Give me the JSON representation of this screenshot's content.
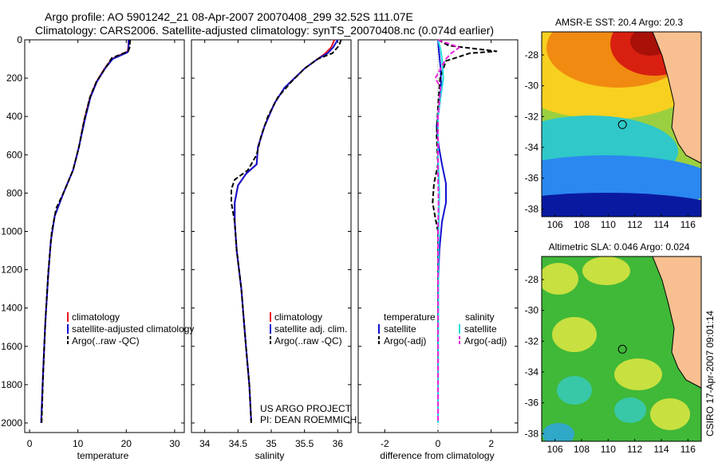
{
  "title": {
    "line1": "Argo profile: AO 5901242_21 08-Apr-2007 20070408_299 32.52S 111.07E",
    "line2": "Climatology: CARS2006. Satellite-adjusted climatology: synTS_20070408.nc (0.074d earlier)"
  },
  "side_label": "CSIRO 17-Apr-2007 09:01:14",
  "project_label": {
    "line1": "US ARGO PROJECT",
    "line2": "PI: DEAN ROEMMICH"
  },
  "colors": {
    "climatology": "#e8141e",
    "satellite": "#1010d0",
    "argo": "#000000",
    "cyan": "#22dde0",
    "magenta": "#ee22dd",
    "land": "#f8c090"
  },
  "chart_data": [
    {
      "id": "temperature",
      "type": "line",
      "xlabel": "temperature",
      "xlim": [
        -1,
        32
      ],
      "ylim": [
        0,
        2050
      ],
      "x_ticks": [
        0,
        10,
        20,
        30
      ],
      "y_ticks": [
        0,
        200,
        400,
        600,
        800,
        1000,
        1200,
        1400,
        1600,
        1800,
        2000
      ],
      "y_reversed": true,
      "legend": [
        "climatology",
        "satellite-adjusted climatology",
        "Argo(..raw -QC)"
      ],
      "series": [
        {
          "name": "climatology",
          "color": "#e8141e",
          "dash": false,
          "points": [
            [
              20.5,
              0
            ],
            [
              20.4,
              40
            ],
            [
              20.3,
              60
            ],
            [
              17,
              100
            ],
            [
              15.5,
              150
            ],
            [
              13.8,
              220
            ],
            [
              12.5,
              300
            ],
            [
              11.3,
              420
            ],
            [
              10.2,
              560
            ],
            [
              9,
              680
            ],
            [
              7,
              800
            ],
            [
              5.2,
              920
            ],
            [
              4.4,
              1050
            ],
            [
              3.8,
              1250
            ],
            [
              3.2,
              1500
            ],
            [
              2.7,
              1800
            ],
            [
              2.4,
              2000
            ]
          ]
        },
        {
          "name": "satellite-adjusted climatology",
          "color": "#1010d0",
          "dash": false,
          "points": [
            [
              20.5,
              0
            ],
            [
              20.5,
              40
            ],
            [
              20.3,
              65
            ],
            [
              17.2,
              100
            ],
            [
              15.6,
              150
            ],
            [
              13.9,
              220
            ],
            [
              12.6,
              300
            ],
            [
              11.4,
              420
            ],
            [
              10.2,
              560
            ],
            [
              9,
              680
            ],
            [
              7,
              800
            ],
            [
              5.2,
              920
            ],
            [
              4.4,
              1050
            ],
            [
              3.8,
              1250
            ],
            [
              3.2,
              1500
            ],
            [
              2.7,
              1800
            ],
            [
              2.4,
              2000
            ]
          ]
        },
        {
          "name": "Argo(..raw -QC)",
          "color": "#000000",
          "dash": true,
          "points": [
            [
              20.8,
              0
            ],
            [
              20.7,
              40
            ],
            [
              20.4,
              60
            ],
            [
              17,
              95
            ],
            [
              15.6,
              150
            ],
            [
              13.8,
              220
            ],
            [
              12.5,
              300
            ],
            [
              11.3,
              420
            ],
            [
              10.2,
              560
            ],
            [
              9,
              680
            ],
            [
              7,
              800
            ],
            [
              5.5,
              880
            ],
            [
              4.6,
              1000
            ],
            [
              3.9,
              1200
            ],
            [
              3.3,
              1450
            ],
            [
              2.8,
              1750
            ],
            [
              2.5,
              2000
            ]
          ]
        }
      ]
    },
    {
      "id": "salinity",
      "type": "line",
      "xlabel": "salinity",
      "xlim": [
        33.8,
        36.2
      ],
      "ylim": [
        0,
        2050
      ],
      "x_ticks": [
        34,
        34.5,
        35,
        35.5,
        36
      ],
      "y_ticks": [],
      "y_reversed": true,
      "legend": [
        "climatology",
        "satellite adj. clim.",
        "Argo(..raw -QC)"
      ],
      "series": [
        {
          "name": "climatology",
          "color": "#e8141e",
          "dash": false,
          "points": [
            [
              35.95,
              0
            ],
            [
              35.9,
              40
            ],
            [
              35.8,
              75
            ],
            [
              35.7,
              100
            ],
            [
              35.5,
              150
            ],
            [
              35.35,
              200
            ],
            [
              35.2,
              250
            ],
            [
              35.05,
              330
            ],
            [
              34.9,
              450
            ],
            [
              34.8,
              560
            ],
            [
              34.78,
              650
            ],
            [
              34.62,
              700
            ],
            [
              34.5,
              760
            ],
            [
              34.45,
              850
            ],
            [
              34.45,
              950
            ],
            [
              34.48,
              1100
            ],
            [
              34.55,
              1300
            ],
            [
              34.62,
              1600
            ],
            [
              34.67,
              1800
            ],
            [
              34.7,
              2000
            ]
          ]
        },
        {
          "name": "satellite adj. clim.",
          "color": "#1010d0",
          "dash": false,
          "points": [
            [
              36.0,
              0
            ],
            [
              35.93,
              40
            ],
            [
              35.85,
              70
            ],
            [
              35.7,
              100
            ],
            [
              35.5,
              150
            ],
            [
              35.35,
              200
            ],
            [
              35.2,
              250
            ],
            [
              35.05,
              330
            ],
            [
              34.9,
              450
            ],
            [
              34.8,
              560
            ],
            [
              34.78,
              650
            ],
            [
              34.62,
              700
            ],
            [
              34.5,
              760
            ],
            [
              34.45,
              850
            ],
            [
              34.45,
              950
            ],
            [
              34.48,
              1100
            ],
            [
              34.55,
              1300
            ],
            [
              34.62,
              1600
            ],
            [
              34.67,
              1800
            ],
            [
              34.7,
              2000
            ]
          ]
        },
        {
          "name": "Argo(..raw -QC)",
          "color": "#000000",
          "dash": true,
          "points": [
            [
              36.05,
              0
            ],
            [
              36.02,
              30
            ],
            [
              35.92,
              70
            ],
            [
              35.7,
              100
            ],
            [
              35.5,
              150
            ],
            [
              35.3,
              220
            ],
            [
              35.1,
              300
            ],
            [
              34.95,
              400
            ],
            [
              34.85,
              500
            ],
            [
              34.78,
              600
            ],
            [
              34.65,
              680
            ],
            [
              34.45,
              730
            ],
            [
              34.4,
              780
            ],
            [
              34.4,
              850
            ],
            [
              34.45,
              950
            ],
            [
              34.48,
              1100
            ],
            [
              34.55,
              1300
            ],
            [
              34.62,
              1600
            ],
            [
              34.67,
              1800
            ],
            [
              34.7,
              2000
            ]
          ]
        }
      ]
    },
    {
      "id": "difference",
      "type": "line",
      "xlabel": "difference from climatology",
      "xlim": [
        -3,
        3
      ],
      "ylim": [
        0,
        2050
      ],
      "x_ticks": [
        -2,
        0,
        2
      ],
      "y_ticks": [],
      "y_reversed": true,
      "legend_titles": [
        "temperature",
        "salinity"
      ],
      "legend": [
        "satellite",
        "Argo(-adj)",
        "satellite",
        "Argo(-adj)"
      ],
      "series": [
        {
          "name": "temperature satellite",
          "color": "#1010d0",
          "dash": false,
          "points": [
            [
              0,
              0
            ],
            [
              0.02,
              40
            ],
            [
              0.05,
              80
            ],
            [
              0.1,
              150
            ],
            [
              0.12,
              250
            ],
            [
              0.05,
              350
            ],
            [
              -0.05,
              450
            ],
            [
              0.02,
              550
            ],
            [
              0.15,
              650
            ],
            [
              0.3,
              750
            ],
            [
              0.3,
              850
            ],
            [
              0.15,
              950
            ],
            [
              0.05,
              1100
            ],
            [
              0,
              1300
            ],
            [
              0,
              1600
            ],
            [
              0,
              2000
            ]
          ]
        },
        {
          "name": "temperature Argo(-adj)",
          "color": "#000000",
          "dash": true,
          "points": [
            [
              0,
              0
            ],
            [
              0.4,
              30
            ],
            [
              2.2,
              60
            ],
            [
              1.2,
              70
            ],
            [
              0.3,
              110
            ],
            [
              0.08,
              200
            ],
            [
              0,
              350
            ],
            [
              -0.05,
              500
            ],
            [
              0,
              650
            ],
            [
              -0.15,
              750
            ],
            [
              -0.2,
              850
            ],
            [
              -0.1,
              930
            ],
            [
              0,
              1000
            ],
            [
              0,
              1300
            ],
            [
              0,
              2000
            ]
          ]
        },
        {
          "name": "salinity satellite",
          "color": "#22dde0",
          "dash": false,
          "points": [
            [
              0,
              0
            ],
            [
              0.1,
              50
            ],
            [
              0.15,
              100
            ],
            [
              0.2,
              200
            ],
            [
              0.1,
              300
            ],
            [
              0,
              400
            ],
            [
              0,
              600
            ],
            [
              0.05,
              800
            ],
            [
              0.02,
              1000
            ],
            [
              0,
              2000
            ]
          ]
        },
        {
          "name": "salinity Argo(-adj)",
          "color": "#ee22dd",
          "dash": true,
          "points": [
            [
              0,
              0
            ],
            [
              0.8,
              40
            ],
            [
              0.5,
              70
            ],
            [
              0.3,
              100
            ],
            [
              -0.1,
              200
            ],
            [
              0.1,
              250
            ],
            [
              0.05,
              320
            ],
            [
              0,
              400
            ],
            [
              0,
              700
            ],
            [
              0.02,
              850
            ],
            [
              0,
              1000
            ],
            [
              0,
              2000
            ]
          ]
        }
      ]
    },
    {
      "id": "sst_map",
      "type": "heatmap",
      "title": "AMSR-E SST: 20.4 Argo: 20.3",
      "xlim": [
        105,
        117
      ],
      "ylim": [
        -38.5,
        -26.5
      ],
      "x_ticks": [
        106,
        108,
        110,
        112,
        114,
        116
      ],
      "y_ticks": [
        -28,
        -30,
        -32,
        -34,
        -36,
        -38
      ],
      "argo_marker": [
        111.07,
        -32.52
      ]
    },
    {
      "id": "sla_map",
      "type": "heatmap",
      "title": "Altimetric SLA: 0.046 Argo: 0.024",
      "xlim": [
        105,
        117
      ],
      "ylim": [
        -38.5,
        -26.5
      ],
      "x_ticks": [
        106,
        108,
        110,
        112,
        114,
        116
      ],
      "y_ticks": [
        -28,
        -30,
        -32,
        -34,
        -36,
        -38
      ],
      "argo_marker": [
        111.07,
        -32.52
      ]
    }
  ]
}
